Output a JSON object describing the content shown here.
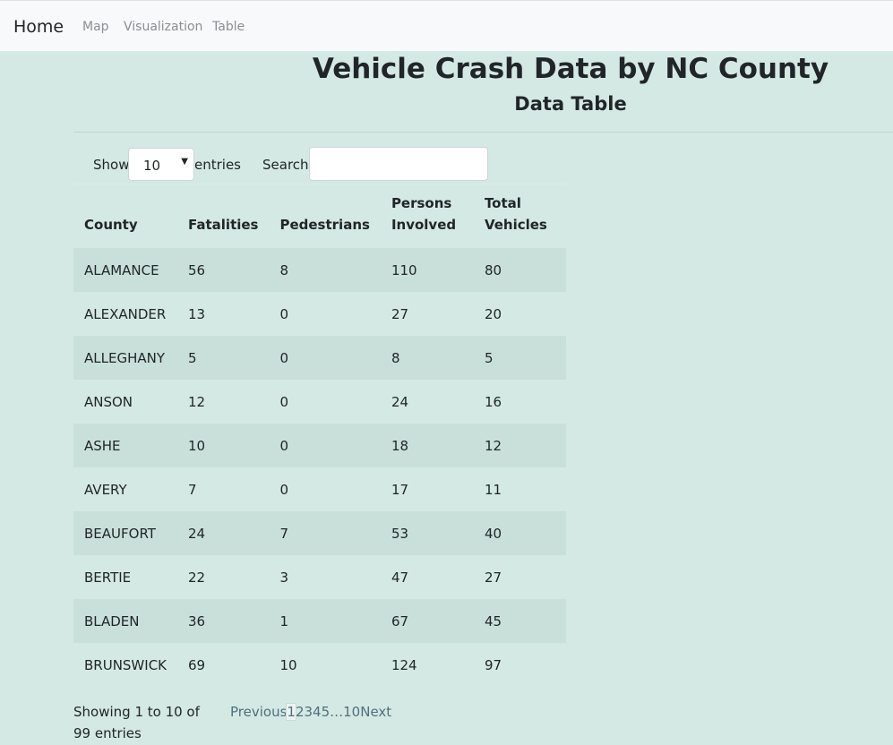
{
  "nav": {
    "brand": "Home",
    "links": [
      "Map",
      "Visualization",
      "Table"
    ]
  },
  "header": {
    "title": "Vehicle Crash Data by NC County",
    "subtitle": "Data Table"
  },
  "controls": {
    "show_label": "Show",
    "entries_value": "10",
    "entries_label": "entries",
    "search_label": "Search:",
    "search_value": ""
  },
  "table": {
    "columns": [
      "County",
      "Fatalities",
      "Pedestrians",
      "Persons Involved",
      "Total Vehicles"
    ],
    "rows": [
      [
        "ALAMANCE",
        "56",
        "8",
        "110",
        "80"
      ],
      [
        "ALEXANDER",
        "13",
        "0",
        "27",
        "20"
      ],
      [
        "ALLEGHANY",
        "5",
        "0",
        "8",
        "5"
      ],
      [
        "ANSON",
        "12",
        "0",
        "24",
        "16"
      ],
      [
        "ASHE",
        "10",
        "0",
        "18",
        "12"
      ],
      [
        "AVERY",
        "7",
        "0",
        "17",
        "11"
      ],
      [
        "BEAUFORT",
        "24",
        "7",
        "53",
        "40"
      ],
      [
        "BERTIE",
        "22",
        "3",
        "47",
        "27"
      ],
      [
        "BLADEN",
        "36",
        "1",
        "67",
        "45"
      ],
      [
        "BRUNSWICK",
        "69",
        "10",
        "124",
        "97"
      ]
    ]
  },
  "footer": {
    "info": "Showing 1 to 10 of 99 entries",
    "pager": {
      "previous": "Previous",
      "pages": [
        "1",
        "2",
        "3",
        "4",
        "5"
      ],
      "ellipsis": "…",
      "last": "10",
      "next": "Next"
    }
  }
}
